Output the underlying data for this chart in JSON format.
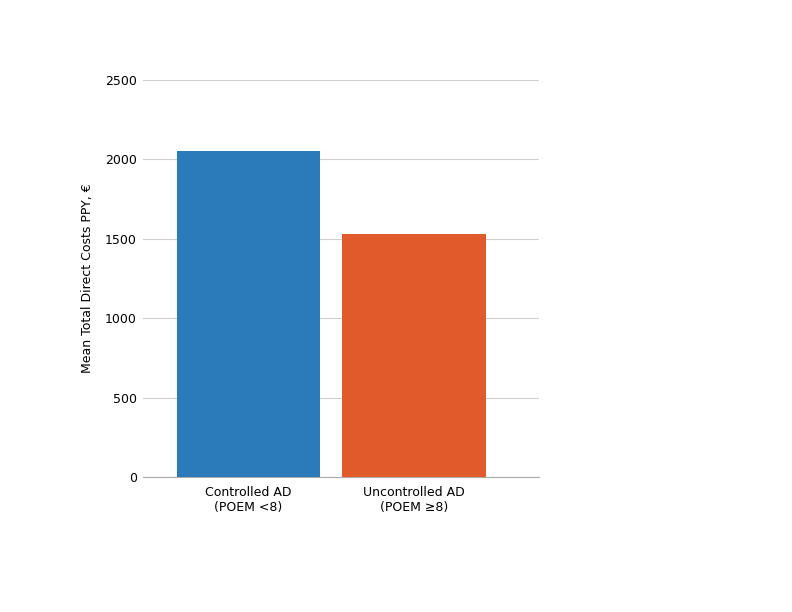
{
  "categories": [
    "Controlled AD\n(POEM <8)",
    "Uncontrolled AD\n(POEM ≥8)"
  ],
  "values": [
    2050,
    1530
  ],
  "bar_colors": [
    "#2b7bba",
    "#e05a2b"
  ],
  "bar_width": 0.38,
  "ylabel": "Mean Total Direct Costs PPY, €",
  "ylim": [
    0,
    2500
  ],
  "yticks": [
    0,
    500,
    1000,
    1500,
    2000,
    2500
  ],
  "grid_color": "#d0d0d0",
  "background_color": "#ffffff",
  "ylabel_fontsize": 9,
  "tick_fontsize": 9,
  "xlabel_fontsize": 9,
  "bar_positions": [
    0.28,
    0.72
  ]
}
